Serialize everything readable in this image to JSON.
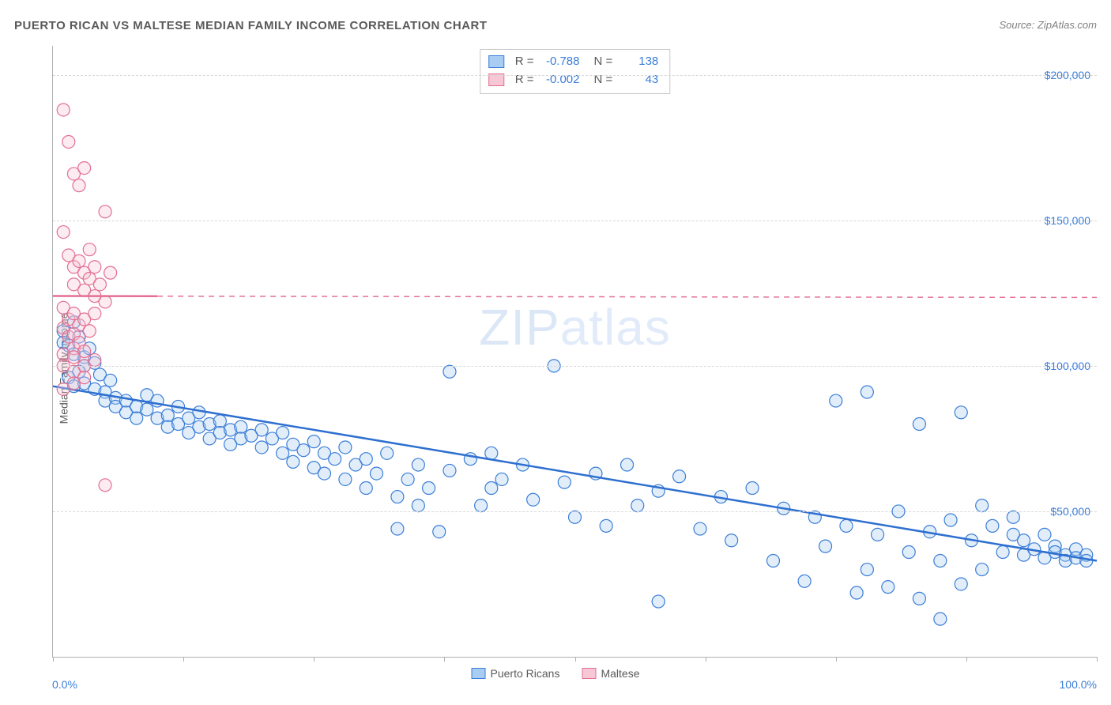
{
  "header": {
    "title": "PUERTO RICAN VS MALTESE MEDIAN FAMILY INCOME CORRELATION CHART",
    "source_prefix": "Source: ",
    "source_name": "ZipAtlas.com"
  },
  "watermark": {
    "bold": "ZIP",
    "thin": "atlas"
  },
  "chart": {
    "type": "scatter",
    "ylabel": "Median Family Income",
    "background_color": "#ffffff",
    "grid_color": "#d8d8d8",
    "axis_color": "#b0b0b0",
    "tick_label_color": "#3b7dd8",
    "label_color": "#5a5a5a",
    "xlim": [
      0,
      100
    ],
    "ylim": [
      0,
      210000
    ],
    "xtick_positions": [
      0,
      12.5,
      25,
      37.5,
      50,
      62.5,
      75,
      87.5,
      100
    ],
    "xaxis_labels": {
      "left": "0.0%",
      "right": "100.0%"
    },
    "yticks": [
      {
        "v": 50000,
        "label": "$50,000"
      },
      {
        "v": 100000,
        "label": "$100,000"
      },
      {
        "v": 150000,
        "label": "$150,000"
      },
      {
        "v": 200000,
        "label": "$200,000"
      }
    ],
    "marker_radius": 8,
    "marker_stroke_width": 1.2,
    "marker_fill_opacity": 0.35,
    "trend_line_width": 2.5,
    "series": [
      {
        "key": "puerto_ricans",
        "label": "Puerto Ricans",
        "fill": "#a9cdf2",
        "stroke": "#3b7dd8",
        "R": "-0.788",
        "N": "138",
        "trend": {
          "x1": 0,
          "y1": 93000,
          "x2": 100,
          "y2": 33000,
          "dash": null,
          "color": "#2e6fcf"
        },
        "points": [
          [
            1,
            112000
          ],
          [
            1,
            108000
          ],
          [
            1.5,
            107000
          ],
          [
            2,
            115000
          ],
          [
            2,
            104000
          ],
          [
            2.5,
            110000
          ],
          [
            3,
            103000
          ],
          [
            3,
            100000
          ],
          [
            3.5,
            106000
          ],
          [
            4,
            101000
          ],
          [
            1.5,
            96000
          ],
          [
            2,
            93000
          ],
          [
            2.5,
            98000
          ],
          [
            3,
            94000
          ],
          [
            4,
            92000
          ],
          [
            4.5,
            97000
          ],
          [
            5,
            91000
          ],
          [
            5,
            88000
          ],
          [
            5.5,
            95000
          ],
          [
            6,
            89000
          ],
          [
            6,
            86000
          ],
          [
            7,
            88000
          ],
          [
            7,
            84000
          ],
          [
            8,
            86000
          ],
          [
            8,
            82000
          ],
          [
            9,
            90000
          ],
          [
            9,
            85000
          ],
          [
            10,
            82000
          ],
          [
            10,
            88000
          ],
          [
            11,
            83000
          ],
          [
            11,
            79000
          ],
          [
            12,
            86000
          ],
          [
            12,
            80000
          ],
          [
            13,
            82000
          ],
          [
            13,
            77000
          ],
          [
            14,
            84000
          ],
          [
            14,
            79000
          ],
          [
            15,
            80000
          ],
          [
            15,
            75000
          ],
          [
            16,
            81000
          ],
          [
            16,
            77000
          ],
          [
            17,
            78000
          ],
          [
            17,
            73000
          ],
          [
            18,
            79000
          ],
          [
            18,
            75000
          ],
          [
            19,
            76000
          ],
          [
            20,
            78000
          ],
          [
            20,
            72000
          ],
          [
            21,
            75000
          ],
          [
            22,
            77000
          ],
          [
            22,
            70000
          ],
          [
            23,
            73000
          ],
          [
            23,
            67000
          ],
          [
            24,
            71000
          ],
          [
            25,
            74000
          ],
          [
            25,
            65000
          ],
          [
            26,
            70000
          ],
          [
            26,
            63000
          ],
          [
            27,
            68000
          ],
          [
            28,
            72000
          ],
          [
            28,
            61000
          ],
          [
            29,
            66000
          ],
          [
            30,
            68000
          ],
          [
            30,
            58000
          ],
          [
            31,
            63000
          ],
          [
            32,
            70000
          ],
          [
            33,
            55000
          ],
          [
            33,
            44000
          ],
          [
            34,
            61000
          ],
          [
            35,
            66000
          ],
          [
            35,
            52000
          ],
          [
            36,
            58000
          ],
          [
            37,
            43000
          ],
          [
            38,
            64000
          ],
          [
            38,
            98000
          ],
          [
            40,
            68000
          ],
          [
            41,
            52000
          ],
          [
            42,
            70000
          ],
          [
            42,
            58000
          ],
          [
            43,
            61000
          ],
          [
            45,
            66000
          ],
          [
            46,
            54000
          ],
          [
            48,
            100000
          ],
          [
            49,
            60000
          ],
          [
            50,
            48000
          ],
          [
            52,
            63000
          ],
          [
            53,
            45000
          ],
          [
            55,
            66000
          ],
          [
            56,
            52000
          ],
          [
            58,
            57000
          ],
          [
            58,
            19000
          ],
          [
            60,
            62000
          ],
          [
            62,
            44000
          ],
          [
            64,
            55000
          ],
          [
            65,
            40000
          ],
          [
            67,
            58000
          ],
          [
            69,
            33000
          ],
          [
            70,
            51000
          ],
          [
            72,
            26000
          ],
          [
            73,
            48000
          ],
          [
            74,
            38000
          ],
          [
            75,
            88000
          ],
          [
            76,
            45000
          ],
          [
            77,
            22000
          ],
          [
            78,
            91000
          ],
          [
            78,
            30000
          ],
          [
            79,
            42000
          ],
          [
            80,
            24000
          ],
          [
            81,
            50000
          ],
          [
            82,
            36000
          ],
          [
            83,
            80000
          ],
          [
            83,
            20000
          ],
          [
            84,
            43000
          ],
          [
            85,
            33000
          ],
          [
            85,
            13000
          ],
          [
            86,
            47000
          ],
          [
            87,
            84000
          ],
          [
            87,
            25000
          ],
          [
            88,
            40000
          ],
          [
            89,
            52000
          ],
          [
            89,
            30000
          ],
          [
            90,
            45000
          ],
          [
            91,
            36000
          ],
          [
            92,
            42000
          ],
          [
            92,
            48000
          ],
          [
            93,
            35000
          ],
          [
            93,
            40000
          ],
          [
            94,
            37000
          ],
          [
            95,
            42000
          ],
          [
            95,
            34000
          ],
          [
            96,
            38000
          ],
          [
            96,
            36000
          ],
          [
            97,
            35000
          ],
          [
            97,
            33000
          ],
          [
            98,
            37000
          ],
          [
            98,
            34000
          ],
          [
            99,
            35000
          ],
          [
            99,
            33000
          ]
        ]
      },
      {
        "key": "maltese",
        "label": "Maltese",
        "fill": "#f7c7d5",
        "stroke": "#e36f93",
        "R": "-0.002",
        "N": "43",
        "trend": {
          "x1": 0,
          "y1": 124000,
          "x2": 100,
          "y2": 123500,
          "dash": "7 6",
          "color": "#e36f93",
          "solid_until_x": 10
        },
        "points": [
          [
            1,
            188000
          ],
          [
            1.5,
            177000
          ],
          [
            2,
            166000
          ],
          [
            2.5,
            162000
          ],
          [
            3,
            168000
          ],
          [
            3.5,
            140000
          ],
          [
            5,
            153000
          ],
          [
            1,
            146000
          ],
          [
            1.5,
            138000
          ],
          [
            2,
            134000
          ],
          [
            2,
            128000
          ],
          [
            2.5,
            136000
          ],
          [
            3,
            132000
          ],
          [
            3,
            126000
          ],
          [
            3.5,
            130000
          ],
          [
            4,
            134000
          ],
          [
            4,
            124000
          ],
          [
            4.5,
            128000
          ],
          [
            5,
            122000
          ],
          [
            5.5,
            132000
          ],
          [
            1,
            120000
          ],
          [
            1.5,
            116000
          ],
          [
            2,
            118000
          ],
          [
            2.5,
            114000
          ],
          [
            3,
            116000
          ],
          [
            3.5,
            112000
          ],
          [
            4,
            118000
          ],
          [
            1,
            113000
          ],
          [
            1.5,
            110000
          ],
          [
            2,
            111000
          ],
          [
            2,
            106000
          ],
          [
            2.5,
            108000
          ],
          [
            3,
            105000
          ],
          [
            1,
            104000
          ],
          [
            2,
            103000
          ],
          [
            3,
            100000
          ],
          [
            4,
            102000
          ],
          [
            1,
            100000
          ],
          [
            2,
            98000
          ],
          [
            3,
            96000
          ],
          [
            2,
            94000
          ],
          [
            1,
            92000
          ],
          [
            5,
            59000
          ]
        ]
      }
    ]
  }
}
